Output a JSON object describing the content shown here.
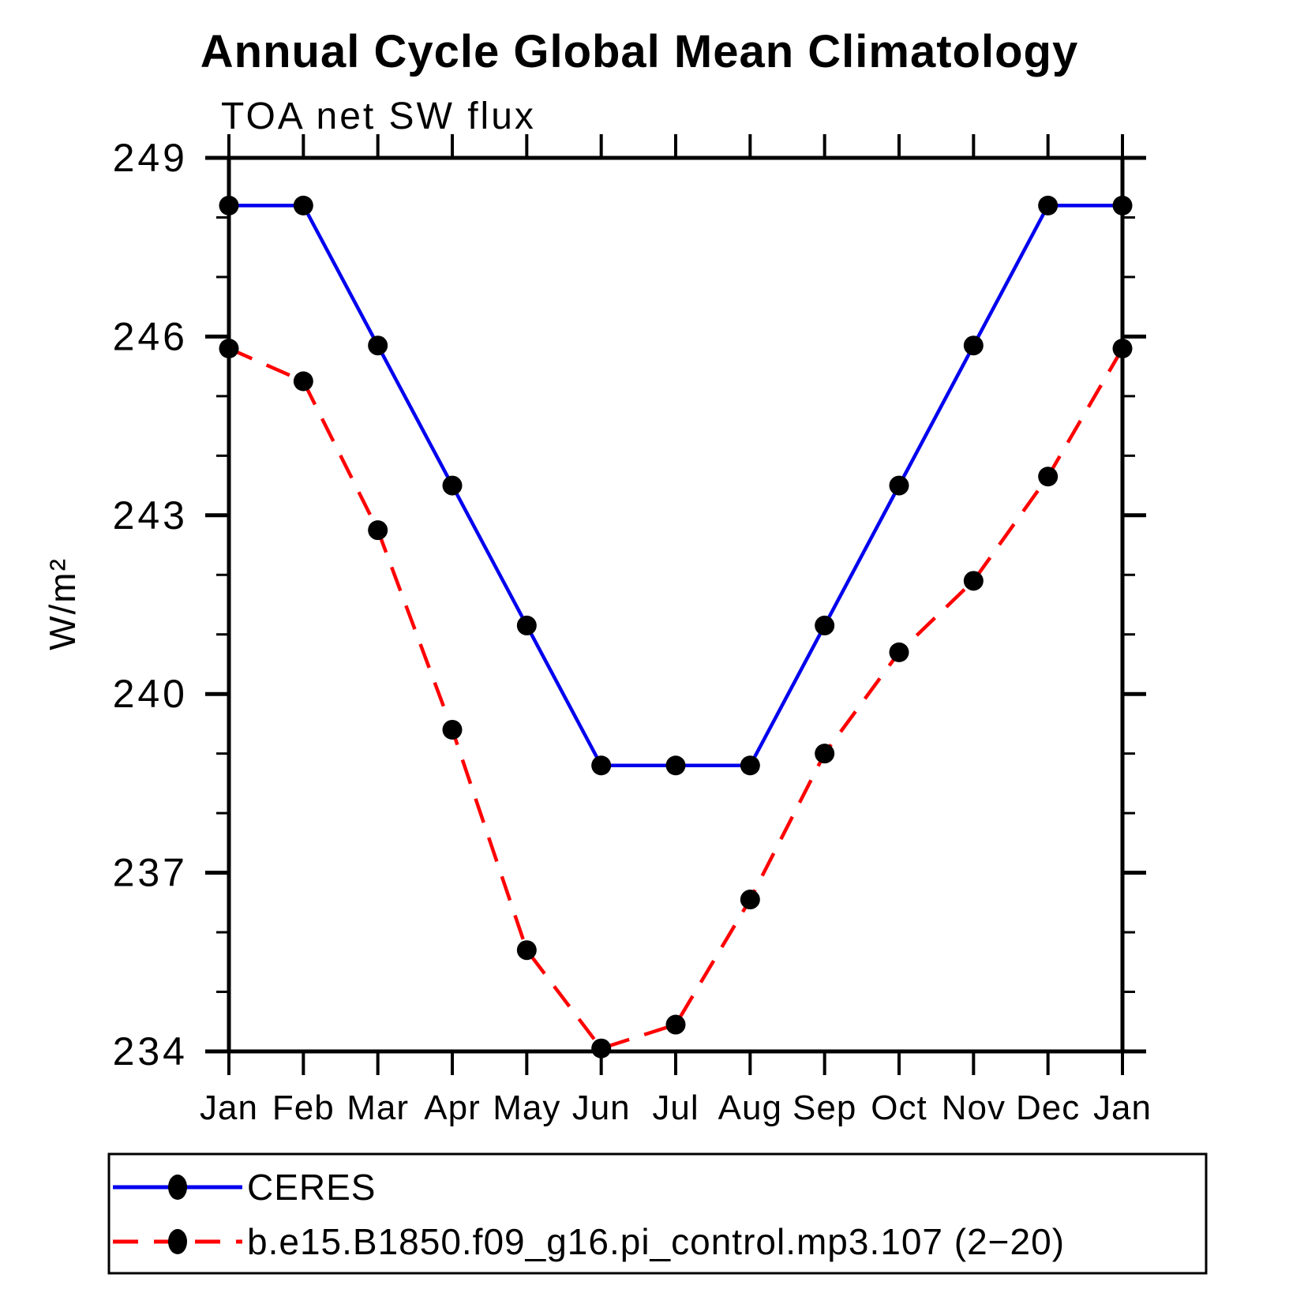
{
  "title": "Annual Cycle Global Mean Climatology",
  "subtitle": "TOA net SW flux",
  "chart_data": {
    "type": "line",
    "title": "Annual Cycle Global Mean Climatology",
    "subtitle": "TOA net SW flux",
    "ylabel": "W/m²",
    "ylim": [
      234,
      249
    ],
    "ytick_major": [
      234,
      237,
      240,
      243,
      246,
      249
    ],
    "ytick_minor_step": 1,
    "grid": "off",
    "legend_position": "bottom",
    "x_categories": [
      "Jan",
      "Feb",
      "Mar",
      "Apr",
      "May",
      "Jun",
      "Jul",
      "Aug",
      "Sep",
      "Oct",
      "Nov",
      "Dec",
      "Jan"
    ],
    "marker": {
      "shape": "circle",
      "color": "#000000"
    },
    "series": [
      {
        "name": "CERES",
        "color": "#0000ee",
        "style": "solid",
        "values": [
          248.2,
          248.2,
          245.85,
          243.5,
          241.15,
          238.8,
          238.8,
          238.8,
          241.15,
          243.5,
          245.85,
          248.2,
          248.2
        ]
      },
      {
        "name": "b.e15.B1850.f09_g16.pi_control.mp3.107 (2−20)",
        "color": "#ff0000",
        "style": "dashed",
        "values": [
          245.8,
          245.25,
          242.75,
          239.4,
          235.7,
          234.05,
          234.45,
          236.55,
          239.0,
          240.7,
          241.9,
          243.65,
          245.8
        ]
      }
    ]
  }
}
